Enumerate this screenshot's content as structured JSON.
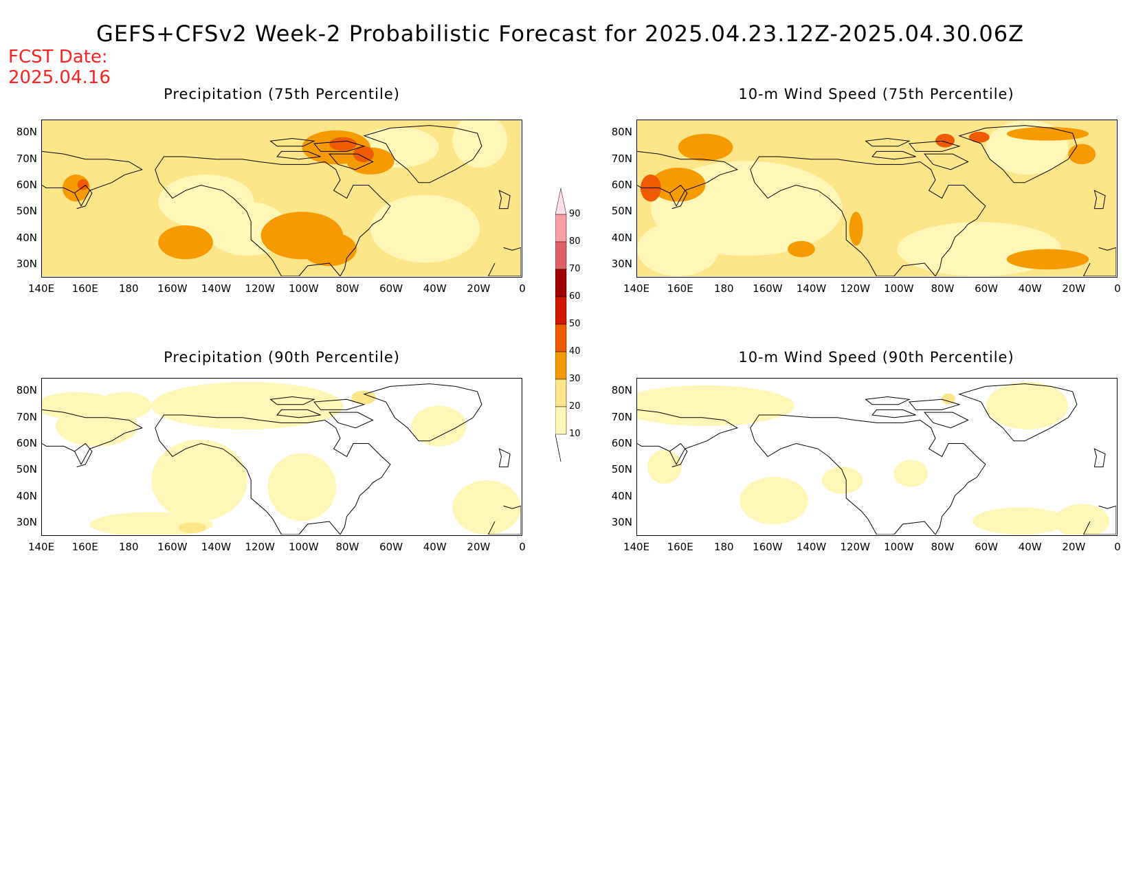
{
  "title": "GEFS+CFSv2 Week-2 Probabilistic Forecast for 2025.04.23.12Z-2025.04.30.06Z",
  "fcst_date": {
    "label": "FCST Date:",
    "value": "2025.04.16"
  },
  "panels": [
    {
      "title": "Precipitation (75th Percentile)",
      "level": "high"
    },
    {
      "title": "10-m Wind Speed (75th Percentile)",
      "level": "high"
    },
    {
      "title": "Precipitation (90th Percentile)",
      "level": "low"
    },
    {
      "title": "10-m Wind Speed (90th Percentile)",
      "level": "low"
    }
  ],
  "lon_ticks": [
    "140E",
    "160E",
    "180",
    "160W",
    "140W",
    "120W",
    "100W",
    "80W",
    "60W",
    "40W",
    "20W",
    "0"
  ],
  "lat_ticks": [
    "80N",
    "70N",
    "60N",
    "50N",
    "40N",
    "30N"
  ],
  "colorbar": {
    "levels": [
      "90",
      "80",
      "70",
      "60",
      "50",
      "40",
      "30",
      "20",
      "10"
    ],
    "colors": [
      "#f7a0a8",
      "#e0606a",
      "#a00000",
      "#d01800",
      "#f05a00",
      "#f59a00",
      "#fde58a",
      "#fff7b8"
    ]
  },
  "colors": {
    "title": "#000000",
    "fcst": "#ff2020"
  }
}
